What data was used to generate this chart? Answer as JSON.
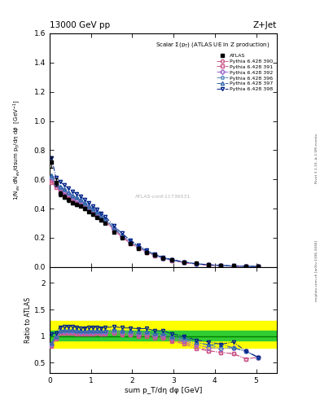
{
  "title_top": "13000 GeV pp",
  "title_right": "Z+Jet",
  "plot_title": "Scalar Σ(p_T) (ATLAS UE in Z production)",
  "xlabel": "sum p_T/dη dφ [GeV]",
  "ylabel_main": "1/N_{ev} dN_{ev}/dsum p_T/dη dφ  [GeV^{-1}]",
  "ylabel_ratio": "Ratio to ATLAS",
  "right_label": "Rivet 3.1.10, ≥ 2.5M events",
  "right_label2": "mcplots.cern.ch [arXiv:1306.3436]",
  "watermark": "ATLAS-conf-11736531",
  "atlas_x": [
    0.05,
    0.15,
    0.25,
    0.35,
    0.45,
    0.55,
    0.65,
    0.75,
    0.85,
    0.95,
    1.05,
    1.15,
    1.25,
    1.35,
    1.55,
    1.75,
    1.95,
    2.15,
    2.35,
    2.55,
    2.75,
    2.95,
    3.25,
    3.55,
    3.85,
    4.15,
    4.45,
    4.75,
    5.05
  ],
  "atlas_y": [
    0.72,
    0.58,
    0.5,
    0.48,
    0.46,
    0.44,
    0.43,
    0.42,
    0.4,
    0.38,
    0.36,
    0.34,
    0.32,
    0.3,
    0.24,
    0.2,
    0.16,
    0.13,
    0.1,
    0.08,
    0.06,
    0.05,
    0.035,
    0.025,
    0.018,
    0.013,
    0.009,
    0.007,
    0.005
  ],
  "atlas_yerr": [
    0.04,
    0.025,
    0.018,
    0.015,
    0.013,
    0.012,
    0.011,
    0.01,
    0.01,
    0.009,
    0.009,
    0.008,
    0.008,
    0.007,
    0.006,
    0.005,
    0.004,
    0.003,
    0.003,
    0.002,
    0.002,
    0.002,
    0.0015,
    0.0012,
    0.001,
    0.001,
    0.0008,
    0.0006,
    0.0005
  ],
  "series": [
    {
      "label": "Pythia 6.428 390",
      "color": "#cc5588",
      "marker": "o",
      "markerfacecolor": "none",
      "linestyle": "-.",
      "y": [
        0.59,
        0.555,
        0.53,
        0.51,
        0.49,
        0.47,
        0.455,
        0.44,
        0.42,
        0.4,
        0.38,
        0.36,
        0.335,
        0.315,
        0.255,
        0.208,
        0.165,
        0.132,
        0.102,
        0.079,
        0.059,
        0.046,
        0.031,
        0.02,
        0.013,
        0.009,
        0.006,
        0.004,
        0.003
      ]
    },
    {
      "label": "Pythia 6.428 391",
      "color": "#cc5588",
      "marker": "s",
      "markerfacecolor": "none",
      "linestyle": "-.",
      "y": [
        0.58,
        0.548,
        0.525,
        0.505,
        0.485,
        0.465,
        0.45,
        0.435,
        0.415,
        0.397,
        0.377,
        0.357,
        0.332,
        0.312,
        0.252,
        0.205,
        0.163,
        0.13,
        0.1,
        0.077,
        0.058,
        0.045,
        0.03,
        0.019,
        0.013,
        0.009,
        0.006,
        0.004,
        0.003
      ]
    },
    {
      "label": "Pythia 6.428 392",
      "color": "#9966cc",
      "marker": "D",
      "markerfacecolor": "none",
      "linestyle": "-.",
      "y": [
        0.61,
        0.565,
        0.54,
        0.52,
        0.5,
        0.48,
        0.464,
        0.448,
        0.428,
        0.408,
        0.388,
        0.368,
        0.342,
        0.322,
        0.262,
        0.213,
        0.17,
        0.136,
        0.105,
        0.081,
        0.061,
        0.048,
        0.032,
        0.021,
        0.014,
        0.01,
        0.007,
        0.005,
        0.003
      ]
    },
    {
      "label": "Pythia 6.428 396",
      "color": "#5588bb",
      "marker": "p",
      "markerfacecolor": "none",
      "linestyle": "-.",
      "y": [
        0.62,
        0.572,
        0.547,
        0.527,
        0.507,
        0.487,
        0.471,
        0.455,
        0.434,
        0.414,
        0.393,
        0.372,
        0.347,
        0.326,
        0.266,
        0.217,
        0.173,
        0.139,
        0.107,
        0.083,
        0.062,
        0.049,
        0.033,
        0.022,
        0.015,
        0.01,
        0.007,
        0.005,
        0.003
      ]
    },
    {
      "label": "Pythia 6.428 397",
      "color": "#3366aa",
      "marker": "^",
      "markerfacecolor": "none",
      "linestyle": "-.",
      "y": [
        0.63,
        0.578,
        0.553,
        0.533,
        0.513,
        0.492,
        0.476,
        0.46,
        0.439,
        0.419,
        0.398,
        0.377,
        0.351,
        0.33,
        0.27,
        0.22,
        0.176,
        0.141,
        0.109,
        0.084,
        0.063,
        0.05,
        0.034,
        0.022,
        0.015,
        0.011,
        0.007,
        0.005,
        0.003
      ]
    },
    {
      "label": "Pythia 6.428 398",
      "color": "#002288",
      "marker": "v",
      "markerfacecolor": "none",
      "linestyle": "-.",
      "y": [
        0.748,
        0.615,
        0.585,
        0.562,
        0.54,
        0.518,
        0.5,
        0.483,
        0.461,
        0.44,
        0.418,
        0.396,
        0.369,
        0.347,
        0.283,
        0.231,
        0.184,
        0.148,
        0.114,
        0.088,
        0.066,
        0.052,
        0.035,
        0.023,
        0.016,
        0.011,
        0.008,
        0.005,
        0.003
      ]
    }
  ],
  "ylim_main": [
    0.0,
    1.6
  ],
  "ylim_ratio": [
    0.3,
    2.3
  ],
  "xlim": [
    0.0,
    5.5
  ],
  "green_band_lo": 0.92,
  "green_band_hi": 1.1,
  "yellow_band_lo": 0.78,
  "yellow_band_hi": 1.28
}
